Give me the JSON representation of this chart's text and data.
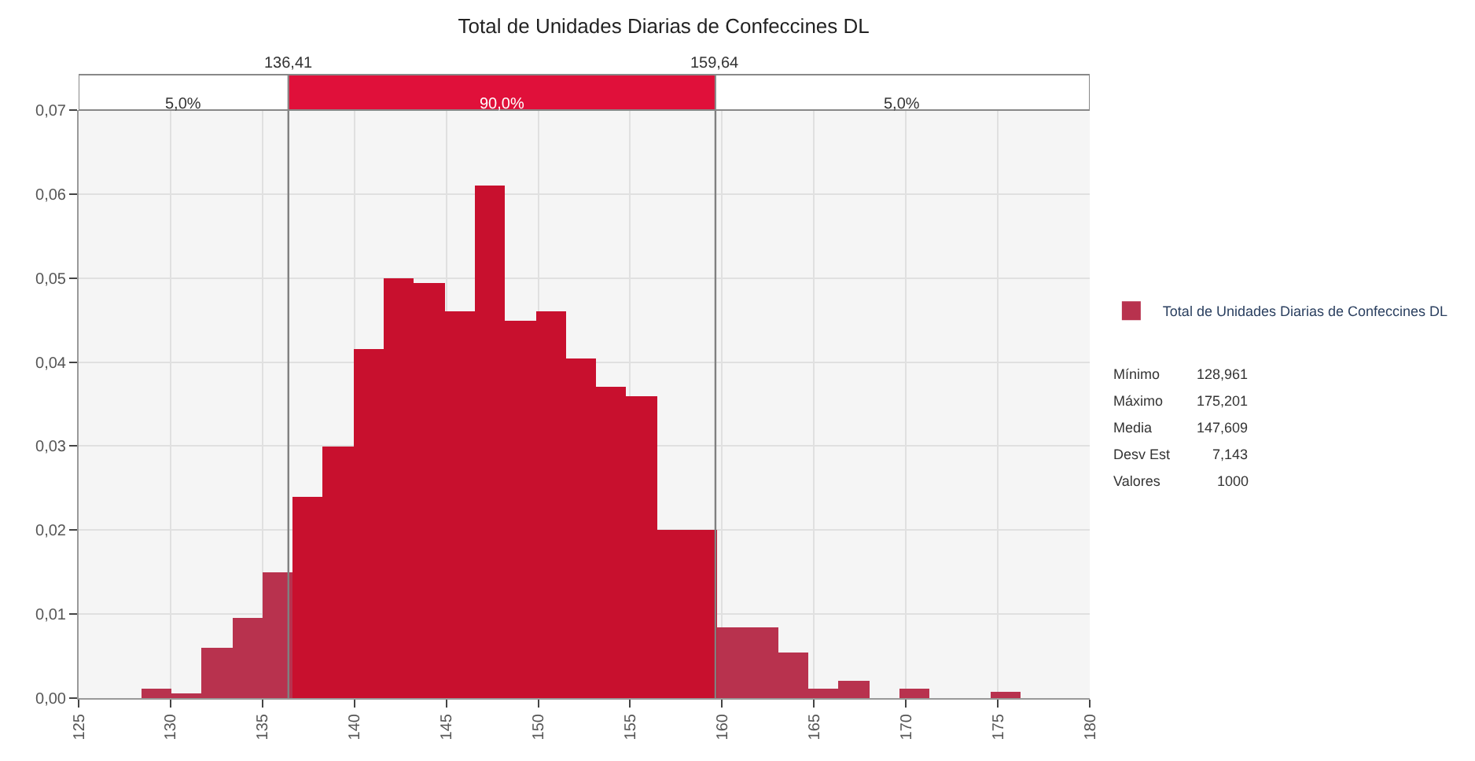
{
  "chart_data": {
    "type": "histogram",
    "title": "Total de Unidades Diarias de Confeccines DL",
    "bins": [
      128.4,
      130.05,
      131.7,
      133.35,
      135.0,
      136.65,
      138.3,
      139.95,
      141.6,
      143.25,
      144.9,
      146.55,
      148.2,
      149.85,
      151.5,
      153.15,
      154.8,
      156.45,
      158.1,
      159.75,
      161.4,
      163.05,
      164.7,
      166.35,
      168.0,
      169.65,
      171.3,
      172.95,
      174.6,
      176.25
    ],
    "series": [
      {
        "name": "Total de Unidades Diarias de Confeccines DL",
        "values": [
          0.0012,
          0.0005,
          0.006,
          0.0095,
          0.015,
          0.024,
          0.03,
          0.0415,
          0.05,
          0.0495,
          0.046,
          0.061,
          0.045,
          0.046,
          0.0405,
          0.037,
          0.036,
          0.02,
          0.02,
          0.0085,
          0.0085,
          0.0055,
          0.0012,
          0.002,
          0,
          0.0012,
          0,
          0,
          0.0007
        ],
        "colors": [
          "#b8324e",
          "#b8324e",
          "#b8324e",
          "#b8324e",
          "#b8324e",
          "#c8102e",
          "#c8102e",
          "#c8102e",
          "#c8102e",
          "#c8102e",
          "#c8102e",
          "#c8102e",
          "#c8102e",
          "#c8102e",
          "#c8102e",
          "#c8102e",
          "#c8102e",
          "#c8102e",
          "#c8102e",
          "#b8324e",
          "#b8324e",
          "#b8324e",
          "#b8324e",
          "#b8324e",
          "#b8324e",
          "#b8324e",
          "#b8324e",
          "#b8324e",
          "#b8324e"
        ]
      }
    ],
    "xlim": [
      125,
      180
    ],
    "xticks": [
      125,
      130,
      135,
      140,
      145,
      150,
      155,
      160,
      165,
      170,
      175,
      180
    ],
    "ylim": [
      0,
      0.07
    ],
    "yticks": [
      {
        "value": 0,
        "label": "0,00"
      },
      {
        "value": 0.01,
        "label": "0,01"
      },
      {
        "value": 0.02,
        "label": "0,02"
      },
      {
        "value": 0.03,
        "label": "0,03"
      },
      {
        "value": 0.04,
        "label": "0,04"
      },
      {
        "value": 0.05,
        "label": "0,05"
      },
      {
        "value": 0.06,
        "label": "0,06"
      },
      {
        "value": 0.07,
        "label": "0,07"
      }
    ],
    "ref_lines": [
      {
        "axis": "x",
        "value": 136.41,
        "label": "136,41",
        "color": "#808080"
      },
      {
        "axis": "x",
        "value": 159.64,
        "label": "159,64",
        "color": "#808080"
      }
    ],
    "annotations": [
      "5,0%",
      "90,0%",
      "5,0%",
      "Mínimo\t128,961",
      "Máximo\t175,201",
      "Media\t147,609",
      "Desv Est\t7,143",
      "Valores\t1000"
    ],
    "grid": true,
    "legend": "right"
  }
}
